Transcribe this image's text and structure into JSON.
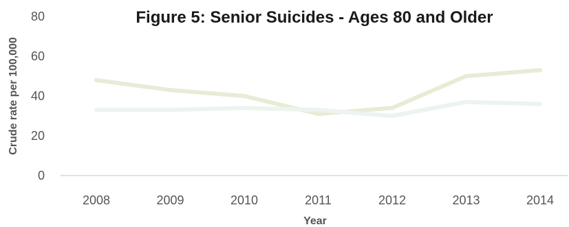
{
  "chart_data": {
    "type": "line",
    "title": "Figure 5: Senior Suicides - Ages 80 and Older",
    "xlabel": "Year",
    "ylabel": "Crude rate per 100,000",
    "x": [
      "2008",
      "2009",
      "2010",
      "2011",
      "2012",
      "2013",
      "2014"
    ],
    "series": [
      {
        "values": [
          48,
          43,
          40,
          31,
          34,
          50,
          53
        ],
        "color": "#e8ecd6"
      },
      {
        "values": [
          33,
          33,
          34,
          33,
          30,
          37,
          36
        ],
        "color": "#edf3ee"
      }
    ],
    "ylim": [
      0,
      80
    ],
    "yticks": [
      "0",
      "20",
      "40",
      "60",
      "80"
    ],
    "grid": false,
    "legend": "none",
    "colors": {
      "axis": "#d9d9d9",
      "text": "#555555",
      "title": "#1a1a1a"
    }
  }
}
